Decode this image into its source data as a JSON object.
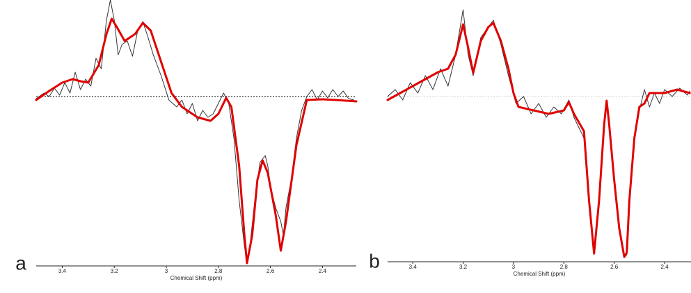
{
  "chart_data": [
    {
      "type": "line",
      "panel_label": "a",
      "x_label": "Chemical Shift (ppm)",
      "xlim": [
        3.5,
        2.27
      ],
      "ylim": [
        -244,
        139
      ],
      "xticks": [
        3.4,
        3.2,
        3.0,
        2.8,
        2.6,
        2.4
      ],
      "reference_line": 0,
      "reference_color": "#000000",
      "reference_style": "dotted",
      "series": [
        {
          "color": "#333333",
          "x": [
            3.5,
            3.47,
            3.45,
            3.43,
            3.41,
            3.39,
            3.37,
            3.35,
            3.33,
            3.31,
            3.29,
            3.27,
            3.25,
            3.23,
            3.215,
            3.2,
            3.185,
            3.17,
            3.15,
            3.13,
            3.11,
            3.09,
            3.07,
            3.05,
            3.02,
            2.99,
            2.96,
            2.94,
            2.92,
            2.9,
            2.88,
            2.86,
            2.84,
            2.82,
            2.8,
            2.78,
            2.76,
            2.74,
            2.72,
            2.7,
            2.69,
            2.68,
            2.66,
            2.64,
            2.62,
            2.61,
            2.6,
            2.58,
            2.56,
            2.55,
            2.54,
            2.52,
            2.5,
            2.48,
            2.46,
            2.44,
            2.42,
            2.4,
            2.38,
            2.36,
            2.34,
            2.32,
            2.3,
            2.28
          ],
          "values": [
            -3,
            5,
            0,
            12,
            2,
            20,
            5,
            35,
            10,
            25,
            15,
            55,
            40,
            110,
            139,
            110,
            60,
            75,
            80,
            58,
            95,
            108,
            85,
            60,
            30,
            -5,
            -15,
            -5,
            -25,
            -10,
            -35,
            -20,
            -30,
            -25,
            -10,
            5,
            -10,
            -60,
            -150,
            -215,
            -240,
            -220,
            -150,
            -95,
            -85,
            -100,
            -130,
            -160,
            -180,
            -200,
            -160,
            -120,
            -60,
            -20,
            0,
            10,
            -5,
            8,
            -2,
            10,
            0,
            8,
            -3,
            -5
          ]
        },
        {
          "color": "#e00000",
          "x": [
            3.5,
            3.45,
            3.4,
            3.36,
            3.33,
            3.3,
            3.26,
            3.23,
            3.21,
            3.19,
            3.16,
            3.12,
            3.09,
            3.06,
            3.02,
            2.98,
            2.94,
            2.88,
            2.83,
            2.8,
            2.77,
            2.75,
            2.72,
            2.7,
            2.69,
            2.67,
            2.65,
            2.63,
            2.61,
            2.58,
            2.56,
            2.54,
            2.5,
            2.46,
            2.4,
            2.35,
            2.27
          ],
          "values": [
            -5,
            8,
            20,
            25,
            22,
            20,
            45,
            90,
            112,
            100,
            80,
            90,
            106,
            95,
            50,
            5,
            -15,
            -30,
            -35,
            -25,
            -2,
            -15,
            -100,
            -200,
            -240,
            -200,
            -120,
            -92,
            -110,
            -170,
            -222,
            -180,
            -70,
            -5,
            -4,
            -5,
            -7
          ]
        }
      ]
    },
    {
      "type": "line",
      "panel_label": "b",
      "x_label": "Chemical Shift (ppm)",
      "xlim": [
        3.5,
        2.295
      ],
      "ylim": [
        -238,
        139
      ],
      "xticks": [
        3.4,
        3.2,
        3.0,
        2.8,
        2.6,
        2.4
      ],
      "reference_line": 0,
      "reference_color": "#cccccc",
      "reference_style": "dotted",
      "series": [
        {
          "color": "#333333",
          "x": [
            3.5,
            3.47,
            3.44,
            3.41,
            3.38,
            3.35,
            3.32,
            3.29,
            3.26,
            3.23,
            3.2,
            3.18,
            3.16,
            3.13,
            3.1,
            3.08,
            3.05,
            3.02,
            2.99,
            2.96,
            2.93,
            2.9,
            2.87,
            2.84,
            2.81,
            2.78,
            2.76,
            2.72,
            2.7,
            2.68,
            2.66,
            2.64,
            2.63,
            2.62,
            2.6,
            2.58,
            2.56,
            2.55,
            2.54,
            2.52,
            2.5,
            2.48,
            2.46,
            2.44,
            2.42,
            2.4,
            2.37,
            2.34,
            2.31,
            2.3
          ],
          "values": [
            0,
            10,
            -5,
            20,
            5,
            30,
            10,
            40,
            15,
            60,
            125,
            60,
            30,
            85,
            100,
            110,
            75,
            30,
            -10,
            0,
            -25,
            -10,
            -30,
            -15,
            -25,
            -5,
            -30,
            -60,
            -150,
            -228,
            -150,
            -40,
            -5,
            -40,
            -120,
            -190,
            -232,
            -228,
            -150,
            -60,
            -20,
            10,
            -15,
            5,
            -10,
            10,
            0,
            12,
            2,
            8
          ]
        },
        {
          "color": "#e00000",
          "x": [
            3.5,
            3.45,
            3.4,
            3.35,
            3.3,
            3.26,
            3.23,
            3.2,
            3.18,
            3.16,
            3.13,
            3.1,
            3.08,
            3.05,
            3.02,
            3.0,
            2.98,
            2.92,
            2.86,
            2.8,
            2.78,
            2.76,
            2.72,
            2.7,
            2.68,
            2.66,
            2.64,
            2.63,
            2.62,
            2.6,
            2.58,
            2.56,
            2.55,
            2.54,
            2.52,
            2.5,
            2.48,
            2.46,
            2.4,
            2.35,
            2.3
          ],
          "values": [
            -5,
            5,
            15,
            25,
            35,
            40,
            60,
            104,
            70,
            34,
            80,
            100,
            106,
            80,
            40,
            5,
            -15,
            -20,
            -25,
            -20,
            -8,
            -25,
            -50,
            -150,
            -226,
            -150,
            -40,
            -6,
            -40,
            -120,
            -190,
            -231,
            -225,
            -150,
            -60,
            -15,
            -10,
            5,
            5,
            10,
            5
          ]
        }
      ]
    }
  ]
}
